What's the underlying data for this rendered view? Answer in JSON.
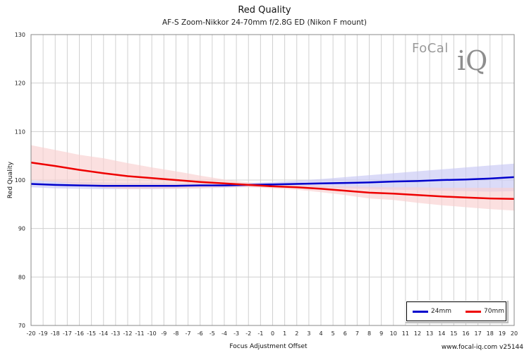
{
  "chart_data": {
    "type": "line",
    "title": "Red Quality",
    "subtitle": "AF-S Zoom-Nikkor 24-70mm f/2.8G ED (Nikon F mount)",
    "xlabel": "Focus Adjustment Offset",
    "ylabel": "Red Quality",
    "xlim": [
      -20,
      20
    ],
    "ylim": [
      70,
      130
    ],
    "x_ticks": [
      -20,
      -19,
      -18,
      -17,
      -16,
      -15,
      -14,
      -13,
      -12,
      -11,
      -10,
      -9,
      -8,
      -7,
      -6,
      -5,
      -4,
      -3,
      -2,
      -1,
      0,
      1,
      2,
      3,
      4,
      5,
      6,
      7,
      8,
      9,
      10,
      11,
      12,
      13,
      14,
      15,
      16,
      17,
      18,
      19,
      20
    ],
    "y_ticks": [
      70,
      80,
      90,
      100,
      110,
      120,
      130
    ],
    "grid": true,
    "legend_position": "bottom-right",
    "x": [
      -20,
      -18,
      -16,
      -14,
      -12,
      -10,
      -8,
      -6,
      -4,
      -2,
      0,
      2,
      4,
      6,
      8,
      10,
      12,
      14,
      16,
      18,
      20
    ],
    "series": [
      {
        "name": "24mm",
        "color": "#0000cc",
        "band_color": "#c8c8f5",
        "values": [
          99.2,
          99.0,
          98.9,
          98.8,
          98.8,
          98.8,
          98.8,
          98.9,
          98.9,
          99.0,
          99.1,
          99.2,
          99.3,
          99.4,
          99.5,
          99.7,
          99.8,
          100.0,
          100.1,
          100.3,
          100.6
        ],
        "upper": [
          99.9,
          99.8,
          99.6,
          99.5,
          99.4,
          99.4,
          99.3,
          99.4,
          99.4,
          99.4,
          99.6,
          99.9,
          100.2,
          100.6,
          101.0,
          101.4,
          101.8,
          102.2,
          102.6,
          103.0,
          103.4
        ],
        "lower": [
          98.5,
          98.3,
          98.2,
          98.1,
          98.1,
          98.1,
          98.2,
          98.3,
          98.4,
          98.6,
          98.6,
          98.5,
          98.4,
          98.3,
          98.2,
          98.0,
          97.9,
          97.8,
          97.7,
          97.6,
          97.7
        ]
      },
      {
        "name": "70mm",
        "color": "#ee0000",
        "band_color": "#f9cfcf",
        "values": [
          103.6,
          102.9,
          102.1,
          101.4,
          100.8,
          100.4,
          100.0,
          99.6,
          99.3,
          99.0,
          98.7,
          98.5,
          98.2,
          97.8,
          97.4,
          97.2,
          96.9,
          96.6,
          96.4,
          96.2,
          96.1
        ],
        "upper": [
          107.2,
          106.2,
          105.2,
          104.5,
          103.5,
          102.6,
          101.8,
          100.9,
          100.1,
          99.5,
          99.1,
          99.0,
          98.9,
          98.7,
          98.6,
          98.5,
          98.5,
          98.4,
          98.4,
          98.4,
          98.4
        ],
        "lower": [
          100.0,
          99.6,
          99.0,
          98.4,
          98.1,
          98.2,
          98.2,
          98.3,
          98.5,
          98.5,
          98.3,
          98.0,
          97.5,
          96.9,
          96.2,
          95.9,
          95.3,
          94.8,
          94.4,
          94.0,
          93.7
        ]
      }
    ]
  },
  "logo": {
    "word": "FoCal",
    "mark": "iQ"
  },
  "credit": "www.focal-iq.com  v25144"
}
